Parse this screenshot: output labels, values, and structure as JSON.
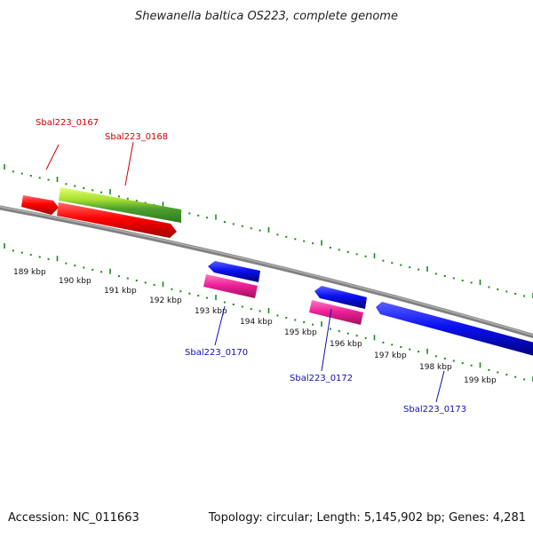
{
  "title": "Shewanella baltica OS223, complete genome",
  "footer": {
    "accession": "Accession: NC_011663",
    "topology": "Topology: circular; Length: 5,145,902 bp; Genes: 4,281"
  },
  "colors": {
    "background": "#ffffff",
    "backbone": "#808080",
    "ticks": "#1b8a1b",
    "red_gene": "#e80000",
    "green_gene": "#6cc020",
    "blue_gene": "#0b10e0",
    "pink_gene": "#e0208c",
    "label_red": "#cc0000",
    "label_blue": "#1010b0"
  },
  "scale": {
    "unit": "kbp",
    "labels": [
      "189 kbp",
      "190 kbp",
      "191 kbp",
      "192 kbp",
      "193 kbp",
      "194 kbp",
      "195 kbp",
      "196 kbp",
      "197 kbp",
      "198 kbp",
      "199 kbp"
    ]
  },
  "genes": [
    {
      "label": "Sbal223_0167",
      "color": "red",
      "strand": "+"
    },
    {
      "label": "Sbal223_0168",
      "color": "green",
      "strand": "+"
    },
    {
      "label": "Sbal223_0170",
      "color": "blue",
      "strand": "-"
    },
    {
      "label": "Sbal223_0172",
      "color": "blue",
      "strand": "-"
    },
    {
      "label": "Sbal223_0173",
      "color": "blue",
      "strand": "-"
    }
  ]
}
